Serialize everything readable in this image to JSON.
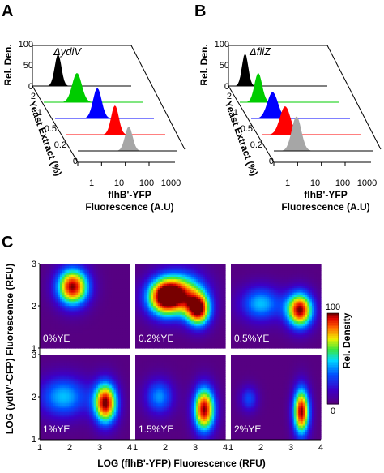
{
  "chart_data": [
    {
      "panel": "A",
      "type": "area",
      "strain_label": "ΔydiV",
      "yaxis": {
        "label": "Rel. Den.",
        "ticks": [
          "0",
          "50",
          "100"
        ],
        "range": [
          0,
          100
        ]
      },
      "depth_axis": {
        "label": "Yeast Extract (%)",
        "ticks": [
          "0",
          "0.2",
          "0.5",
          "1",
          "2"
        ]
      },
      "xaxis": {
        "label_line1": "flhB'-YFP",
        "label_line2": "Fluorescence (A.U)",
        "ticks": [
          "1",
          "10",
          "100",
          "1000"
        ],
        "scale": "log",
        "range": [
          1,
          3000
        ]
      },
      "series": [
        {
          "name": "0",
          "color": "#a6a6a6",
          "peak_x": 140,
          "peak_y": 60,
          "width": 0.16
        },
        {
          "name": "0.2",
          "color": "#ff0000",
          "peak_x": 110,
          "peak_y": 72,
          "width": 0.16
        },
        {
          "name": "0.5",
          "color": "#0000ff",
          "peak_x": 60,
          "peak_y": 75,
          "width": 0.18
        },
        {
          "name": "1",
          "color": "#00cc00",
          "peak_x": 25,
          "peak_y": 72,
          "width": 0.2
        },
        {
          "name": "2",
          "color": "#000000",
          "peak_x": 12,
          "peak_y": 78,
          "width": 0.14
        }
      ]
    },
    {
      "panel": "B",
      "type": "area",
      "strain_label": "ΔfliZ",
      "yaxis": {
        "label": "Rel. Den.",
        "ticks": [
          "0",
          "50",
          "100"
        ],
        "range": [
          0,
          100
        ]
      },
      "depth_axis": {
        "label": "Yeast Extract (%)",
        "ticks": [
          "0",
          "0.2",
          "0.5",
          "1",
          "2"
        ]
      },
      "xaxis": {
        "label_line1": "flhB'-YFP",
        "label_line2": "Fluorescence (A.U)",
        "ticks": [
          "1",
          "10",
          "100",
          "1000"
        ],
        "scale": "log",
        "range": [
          1,
          3000
        ]
      },
      "series": [
        {
          "name": "0",
          "color": "#a6a6a6",
          "peak_x": 9,
          "peak_y": 85,
          "width": 0.2
        },
        {
          "name": "0.2",
          "color": "#ff0000",
          "peak_x": 9,
          "peak_y": 70,
          "width": 0.22
        },
        {
          "name": "0.5",
          "color": "#0000ff",
          "peak_x": 8,
          "peak_y": 65,
          "width": 0.22
        },
        {
          "name": "1",
          "color": "#00cc00",
          "peak_x": 6,
          "peak_y": 72,
          "width": 0.16
        },
        {
          "name": "2",
          "color": "#000000",
          "peak_x": 5,
          "peak_y": 80,
          "width": 0.13
        }
      ]
    },
    {
      "panel": "C",
      "type": "heatmap",
      "xaxis": {
        "label": "LOG (flhB'-YFP) Fluorescence (RFU)",
        "ticks": [
          "1",
          "2",
          "3",
          "4"
        ],
        "range": [
          1,
          4
        ]
      },
      "yaxis": {
        "label": "LOG (ydiV'-CFP) Fluorescence (RFU)",
        "ticks": [
          "1",
          "2",
          "3"
        ],
        "range": [
          1,
          3
        ]
      },
      "colorbar": {
        "label": "Rel. Density",
        "ticks": [
          "0",
          "100"
        ],
        "range": [
          0,
          100
        ]
      },
      "panels": [
        {
          "label": "0%YE",
          "peaks": [
            {
              "x": 2.1,
              "y": 2.45,
              "amp": 100,
              "sx": 0.38,
              "sy": 0.32
            }
          ]
        },
        {
          "label": "0.2%YE",
          "peaks": [
            {
              "x": 2.0,
              "y": 2.2,
              "amp": 100,
              "sx": 0.45,
              "sy": 0.32
            },
            {
              "x": 3.1,
              "y": 1.9,
              "amp": 95,
              "sx": 0.3,
              "sy": 0.28
            },
            {
              "x": 2.6,
              "y": 2.35,
              "amp": 55,
              "sx": 0.55,
              "sy": 0.35
            }
          ]
        },
        {
          "label": "0.5%YE",
          "peaks": [
            {
              "x": 3.3,
              "y": 1.9,
              "amp": 100,
              "sx": 0.32,
              "sy": 0.3
            },
            {
              "x": 2.0,
              "y": 2.05,
              "amp": 45,
              "sx": 0.5,
              "sy": 0.3
            }
          ]
        },
        {
          "label": "1%YE",
          "peaks": [
            {
              "x": 3.2,
              "y": 1.85,
              "amp": 100,
              "sx": 0.28,
              "sy": 0.35
            },
            {
              "x": 1.8,
              "y": 2.0,
              "amp": 45,
              "sx": 0.6,
              "sy": 0.35
            }
          ]
        },
        {
          "label": "1.5%YE",
          "peaks": [
            {
              "x": 3.3,
              "y": 1.7,
              "amp": 100,
              "sx": 0.26,
              "sy": 0.38
            },
            {
              "x": 1.8,
              "y": 2.0,
              "amp": 40,
              "sx": 0.35,
              "sy": 0.3
            }
          ]
        },
        {
          "label": "2%YE",
          "peaks": [
            {
              "x": 3.35,
              "y": 1.65,
              "amp": 100,
              "sx": 0.2,
              "sy": 0.4
            },
            {
              "x": 1.6,
              "y": 1.95,
              "amp": 30,
              "sx": 0.22,
              "sy": 0.22
            }
          ]
        }
      ]
    }
  ],
  "panel_letters": {
    "a": "A",
    "b": "B",
    "c": "C"
  }
}
